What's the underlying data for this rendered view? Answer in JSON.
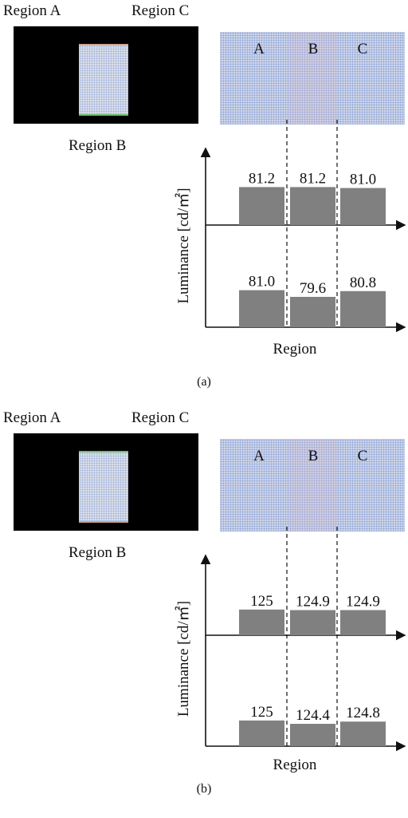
{
  "panels": [
    {
      "id": "a",
      "caption": "(a)",
      "screen_labels": {
        "region_a": "Region A",
        "region_c": "Region C",
        "region_b": "Region B"
      },
      "pattern_columns": [
        "A",
        "B",
        "C"
      ],
      "chart": {
        "ylabel": "Luminance [cd/㎡]",
        "xlabel": "Region"
      }
    },
    {
      "id": "b",
      "caption": "(b)",
      "screen_labels": {
        "region_a": "Region A",
        "region_c": "Region C",
        "region_b": "Region B"
      },
      "pattern_columns": [
        "A",
        "B",
        "C"
      ],
      "chart": {
        "ylabel": "Luminance [cd/㎡]",
        "xlabel": "Region"
      }
    }
  ],
  "chart_data": [
    {
      "type": "bar",
      "title": "",
      "categories": [
        "A",
        "B",
        "C"
      ],
      "series": [
        {
          "values": [
            81.2,
            81.2,
            81.0
          ]
        },
        {
          "values": [
            81.0,
            79.6,
            80.8
          ]
        }
      ],
      "value_labels": [
        [
          "81.2",
          "81.2",
          "81.0"
        ],
        [
          "81.0",
          "79.6",
          "80.8"
        ]
      ],
      "xlabel": "Region",
      "ylabel": "Luminance [cd/㎡]",
      "bar_color": "#808080"
    },
    {
      "type": "bar",
      "title": "",
      "categories": [
        "A",
        "B",
        "C"
      ],
      "series": [
        {
          "values": [
            125,
            124.9,
            124.9
          ]
        },
        {
          "values": [
            125,
            124.4,
            124.8
          ]
        }
      ],
      "value_labels": [
        [
          "125",
          "124.9",
          "124.9"
        ],
        [
          "125",
          "124.4",
          "124.8"
        ]
      ],
      "xlabel": "Region",
      "ylabel": "Luminance [cd/㎡]",
      "bar_color": "#808080"
    }
  ]
}
